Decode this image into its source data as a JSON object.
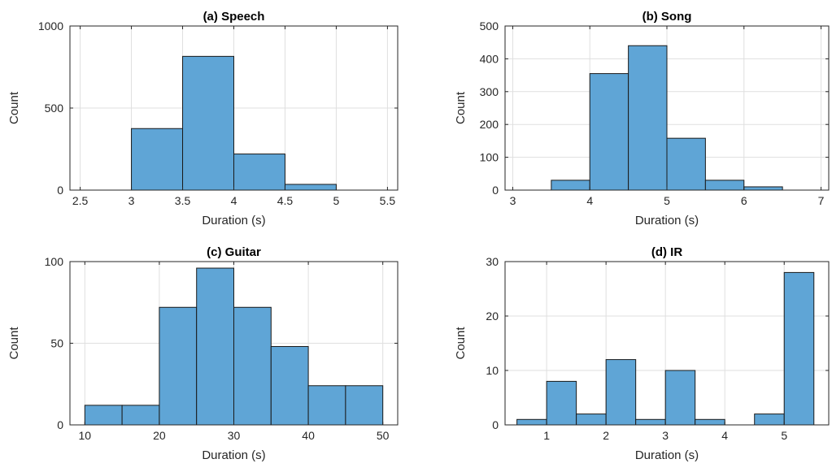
{
  "chart_data": [
    {
      "type": "bar",
      "title": "(a) Speech",
      "xlabel": "Duration (s)",
      "ylabel": "Count",
      "xlim": [
        2.4,
        5.6
      ],
      "ylim": [
        0,
        1000
      ],
      "xticks": [
        2.5,
        3,
        3.5,
        4,
        4.5,
        5,
        5.5
      ],
      "xtick_labels": [
        "2.5",
        "3",
        "3.5",
        "4",
        "4.5",
        "5",
        "5.5"
      ],
      "yticks": [
        0,
        500,
        1000
      ],
      "ytick_labels": [
        "0",
        "500",
        "1000"
      ],
      "grid": true,
      "bar_color": "#5fa5d6",
      "bins": [
        {
          "start": 3.0,
          "end": 3.5,
          "value": 375
        },
        {
          "start": 3.5,
          "end": 4.0,
          "value": 815
        },
        {
          "start": 4.0,
          "end": 4.5,
          "value": 220
        },
        {
          "start": 4.5,
          "end": 5.0,
          "value": 35
        }
      ]
    },
    {
      "type": "bar",
      "title": "(b) Song",
      "xlabel": "Duration (s)",
      "ylabel": "Count",
      "xlim": [
        2.9,
        7.1
      ],
      "ylim": [
        0,
        500
      ],
      "xticks": [
        3,
        4,
        5,
        6,
        7
      ],
      "xtick_labels": [
        "3",
        "4",
        "5",
        "6",
        "7"
      ],
      "yticks": [
        0,
        100,
        200,
        300,
        400,
        500
      ],
      "ytick_labels": [
        "0",
        "100",
        "200",
        "300",
        "400",
        "500"
      ],
      "grid": true,
      "bar_color": "#5fa5d6",
      "bins": [
        {
          "start": 3.5,
          "end": 4.0,
          "value": 30
        },
        {
          "start": 4.0,
          "end": 4.5,
          "value": 355
        },
        {
          "start": 4.5,
          "end": 5.0,
          "value": 440
        },
        {
          "start": 5.0,
          "end": 5.5,
          "value": 158
        },
        {
          "start": 5.5,
          "end": 6.0,
          "value": 30
        },
        {
          "start": 6.0,
          "end": 6.5,
          "value": 10
        }
      ]
    },
    {
      "type": "bar",
      "title": "(c) Guitar",
      "xlabel": "Duration (s)",
      "ylabel": "Count",
      "xlim": [
        8,
        52
      ],
      "ylim": [
        0,
        100
      ],
      "xticks": [
        10,
        20,
        30,
        40,
        50
      ],
      "xtick_labels": [
        "10",
        "20",
        "30",
        "40",
        "50"
      ],
      "yticks": [
        0,
        50,
        100
      ],
      "ytick_labels": [
        "0",
        "50",
        "100"
      ],
      "grid": true,
      "bar_color": "#5fa5d6",
      "bins": [
        {
          "start": 10,
          "end": 15,
          "value": 12
        },
        {
          "start": 15,
          "end": 20,
          "value": 12
        },
        {
          "start": 20,
          "end": 25,
          "value": 72
        },
        {
          "start": 25,
          "end": 30,
          "value": 96
        },
        {
          "start": 30,
          "end": 35,
          "value": 72
        },
        {
          "start": 35,
          "end": 40,
          "value": 48
        },
        {
          "start": 40,
          "end": 45,
          "value": 24
        },
        {
          "start": 45,
          "end": 50,
          "value": 24
        }
      ]
    },
    {
      "type": "bar",
      "title": "(d) IR",
      "xlabel": "Duration (s)",
      "ylabel": "Count",
      "xlim": [
        0.3,
        5.75
      ],
      "ylim": [
        0,
        30
      ],
      "xticks": [
        1,
        2,
        3,
        4,
        5
      ],
      "xtick_labels": [
        "1",
        "2",
        "3",
        "4",
        "5"
      ],
      "yticks": [
        0,
        10,
        20,
        30
      ],
      "ytick_labels": [
        "0",
        "10",
        "20",
        "30"
      ],
      "grid": true,
      "bar_color": "#5fa5d6",
      "bins": [
        {
          "start": 0.5,
          "end": 1.0,
          "value": 1
        },
        {
          "start": 1.0,
          "end": 1.5,
          "value": 8
        },
        {
          "start": 1.5,
          "end": 2.0,
          "value": 2
        },
        {
          "start": 2.0,
          "end": 2.5,
          "value": 12
        },
        {
          "start": 2.5,
          "end": 3.0,
          "value": 1
        },
        {
          "start": 3.0,
          "end": 3.5,
          "value": 10
        },
        {
          "start": 3.5,
          "end": 4.0,
          "value": 1
        },
        {
          "start": 4.0,
          "end": 4.5,
          "value": 0
        },
        {
          "start": 4.5,
          "end": 5.0,
          "value": 2
        },
        {
          "start": 5.0,
          "end": 5.5,
          "value": 28
        }
      ]
    }
  ]
}
